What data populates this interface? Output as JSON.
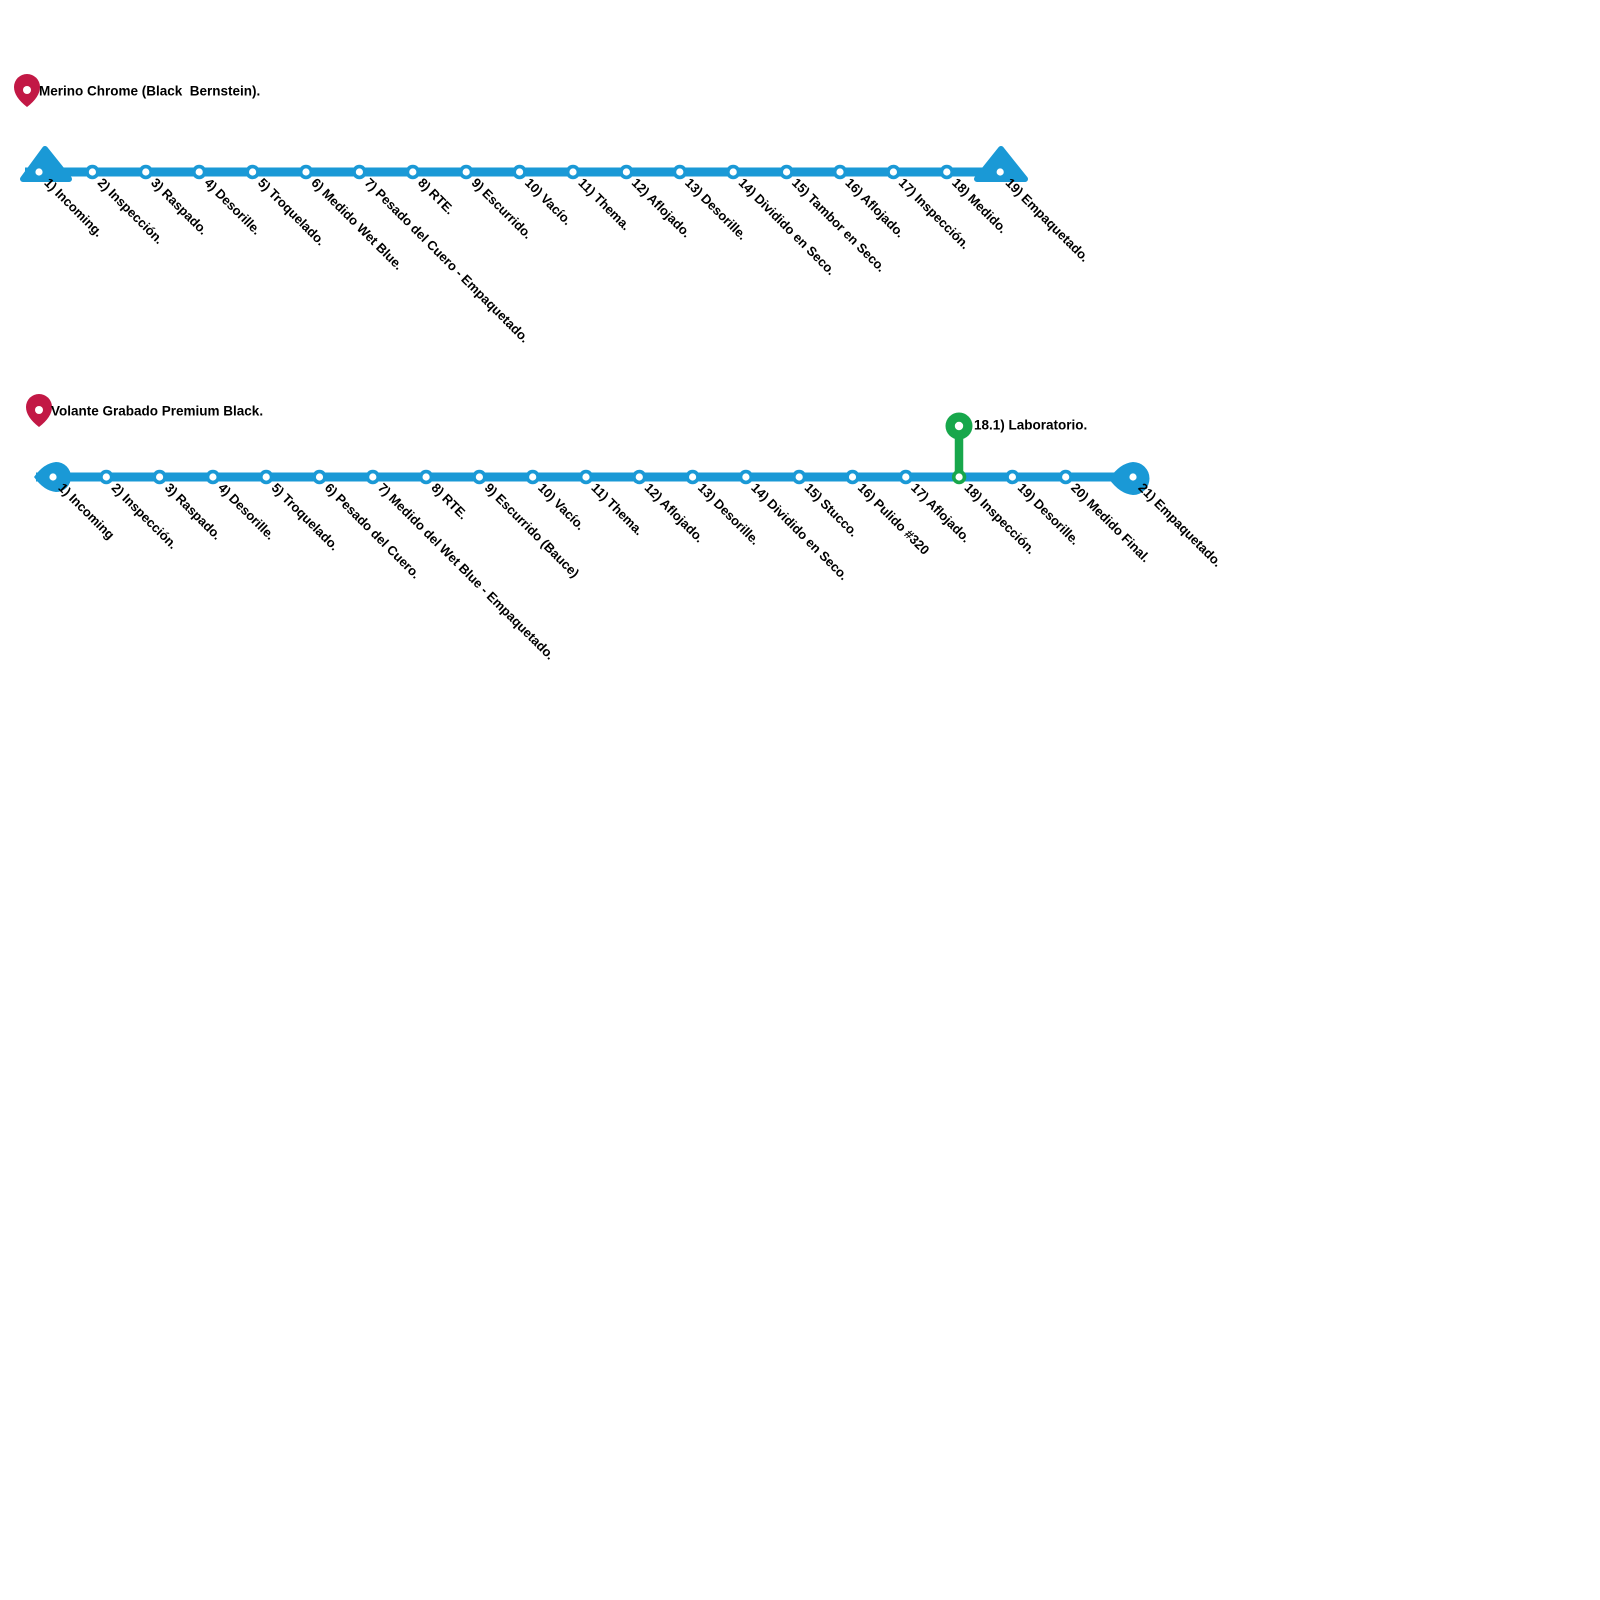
{
  "colors": {
    "line_blue": "#1A99D6",
    "branch_green": "#17A74B",
    "pin_red": "#C21845",
    "station_core": "#ffffff",
    "text": "#000000"
  },
  "lines": [
    {
      "title": "Merino Chrome (Black  Bernstein).",
      "stations": [
        "1) Incoming.",
        "2) Inspección.",
        "3) Raspado.",
        "4) Desorille.",
        "5) Troquelado.",
        "6) Medido Wet Blue.",
        "7) Pesado del Cuero - Empaquetado.",
        "8) RTE.",
        "9) Escurrido.",
        "10) Vacío.",
        "11) Thema.",
        "12) Aflojado.",
        "13) Desorille.",
        "14) Dividido en Seco.",
        "15) Tambor en Seco.",
        "16) Aflojado.",
        "17) Inspección.",
        "18) Medido.",
        "19) Empaquetado."
      ]
    },
    {
      "title": "Volante Grabado Premium Black.",
      "stations": [
        "1) Incoming",
        "2) Inspección.",
        "3) Raspado.",
        "4) Desorille.",
        "5) Troquelado.",
        "6) Pesado del Cuero.",
        "7) Medido del Wet Blue - Empaquetado.",
        "8) RTE.",
        "9) Escurrido (Bauce)",
        "10) Vacío.",
        "11) Thema.",
        "12) Aflojado.",
        "13) Desorille.",
        "14) Dividido en Seco.",
        "15) Stucco.",
        "16) Pulido #320",
        "17) Aflojado.",
        "18) Inspección.",
        "19) Desorille.",
        "20) Medido Final.",
        "21) Empaquetado."
      ],
      "branch": {
        "label": "18.1) Laboratorio.",
        "attach_station_index": 17
      }
    }
  ]
}
